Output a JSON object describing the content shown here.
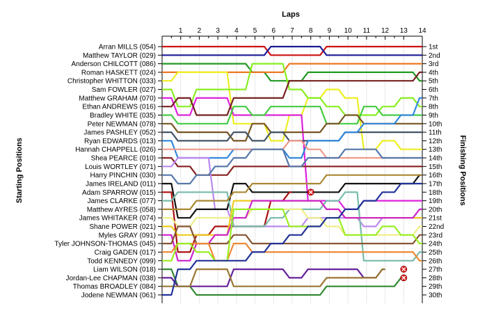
{
  "chart_data": {
    "type": "line",
    "title": "",
    "xlabel": "Laps",
    "ylabel_left": "Starting Positions",
    "ylabel_right": "Finishing Positions",
    "laps": [
      1,
      2,
      3,
      4,
      5,
      6,
      7,
      8,
      9,
      10,
      11,
      12,
      13,
      14
    ],
    "x_range": [
      0,
      14
    ],
    "y_range": [
      1,
      30
    ],
    "drivers": [
      "Arran MILLS (054)",
      "Matthew TAYLOR (029)",
      "Anderson CHILCOTT (086)",
      "Roman HASKETT (024)",
      "Christopher WHITTON (033)",
      "Sam FOWLER (027)",
      "Matthew GRAHAM (070)",
      "Ethan ANDREWS (016)",
      "Bradley WHITE (035)",
      "Peter NEWMAN (078)",
      "James PASHLEY (052)",
      "Ryan EDWARDS (013)",
      "Hannah CHAPPELL (026)",
      "Shea PEARCE (010)",
      "Louis WORTLEY (071)",
      "Harry PINCHIN (030)",
      "James IRELAND (011)",
      "Adam SPARROW (015)",
      "James CLARKE (077)",
      "Matthew AYRES (058)",
      "James WHITAKER (074)",
      "Shane POWER (021)",
      "Myles GRAY (091)",
      "Tyler JOHNSON-THOMAS (045)",
      "Craig GADEN (017)",
      "Todd KENNEDY (099)",
      "Liam WILSON (018)",
      "Jordan-Lee CHAPMAN (038)",
      "Thomas BROADLEY (084)",
      "Jodene NEWMAN (061)"
    ],
    "finishing_labels": [
      "1st",
      "2nd",
      "3rd",
      "4th",
      "5th",
      "6th",
      "7th",
      "8th",
      "9th",
      "10th",
      "11th",
      "12th",
      "13th",
      "14th",
      "15th",
      "16th",
      "17th",
      "18th",
      "19th",
      "20th",
      "21st",
      "22nd",
      "23rd",
      "24th",
      "25th",
      "26th",
      "27th",
      "28th",
      "29th",
      "30th"
    ],
    "series": [
      {
        "color": "#cc1111",
        "positions": [
          1,
          1,
          1,
          1,
          1,
          1,
          2,
          2,
          2,
          1,
          1,
          1,
          1,
          1,
          1
        ]
      },
      {
        "color": "#1a1a99",
        "positions": [
          2,
          2,
          2,
          2,
          2,
          2,
          1,
          1,
          1,
          2,
          2,
          2,
          2,
          2,
          2
        ]
      },
      {
        "color": "#229922",
        "positions": [
          3,
          3,
          3,
          3,
          3,
          4,
          5,
          5,
          4,
          4,
          4,
          4,
          4,
          4,
          5
        ]
      },
      {
        "color": "#ee7722",
        "positions": [
          4,
          4,
          4,
          4,
          4,
          4,
          4,
          3,
          3,
          3,
          3,
          3,
          3,
          3,
          3
        ]
      },
      {
        "color": "#eeee22",
        "positions": [
          5,
          4,
          4,
          4,
          10,
          10,
          12,
          9,
          7,
          6,
          7,
          13,
          12,
          13,
          13
        ]
      },
      {
        "color": "#88ee22",
        "positions": [
          6,
          8,
          6,
          6,
          6,
          3,
          3,
          6,
          7,
          8,
          9,
          9,
          8,
          7,
          8
        ]
      },
      {
        "color": "#dd22dd",
        "positions": [
          7,
          9,
          7,
          7,
          9,
          9,
          9,
          9,
          19,
          19,
          20,
          19,
          19,
          19,
          19
        ]
      },
      {
        "color": "#772222",
        "positions": [
          8,
          7,
          9,
          9,
          7,
          7,
          7,
          5,
          5,
          5,
          5,
          5,
          5,
          5,
          4
        ]
      },
      {
        "color": "#44cc44",
        "positions": [
          9,
          10,
          10,
          10,
          8,
          9,
          8,
          8,
          8,
          10,
          10,
          8,
          9,
          9,
          9
        ]
      },
      {
        "color": "#775522",
        "positions": [
          10,
          11,
          11,
          11,
          12,
          10,
          11,
          11,
          11,
          10,
          9,
          10,
          10,
          10,
          10
        ]
      },
      {
        "color": "#445566",
        "positions": [
          11,
          12,
          12,
          12,
          11,
          12,
          11,
          12,
          12,
          12,
          11,
          11,
          11,
          11,
          11
        ]
      },
      {
        "color": "#3388dd",
        "positions": [
          12,
          14,
          14,
          14,
          13,
          13,
          13,
          14,
          12,
          12,
          11,
          10,
          10,
          9,
          7
        ]
      },
      {
        "color": "#ee9988",
        "positions": [
          13,
          13,
          13,
          13,
          13,
          13,
          13,
          12,
          13,
          14,
          14,
          14,
          14,
          14,
          14
        ]
      },
      {
        "color": "#882222",
        "positions": [
          14,
          15,
          16,
          16,
          15,
          15,
          15,
          15,
          15,
          15,
          15,
          15,
          15,
          15,
          15
        ]
      },
      {
        "color": "#bb88ee",
        "positions": [
          15,
          14,
          14,
          20,
          22,
          22,
          22,
          22,
          21,
          21,
          21,
          22,
          21,
          21,
          21
        ]
      },
      {
        "color": "#5577aa",
        "positions": [
          16,
          17,
          16,
          15,
          14,
          13,
          13,
          15,
          14,
          14,
          13,
          13,
          14,
          14,
          14
        ]
      },
      {
        "color": "#111111",
        "positions": [
          17,
          21,
          20,
          20,
          17,
          18,
          18,
          18,
          18,
          18,
          17,
          17,
          17,
          17,
          16
        ]
      },
      {
        "color": "#aa1111",
        "positions": [
          18,
          25,
          23,
          22,
          22,
          22,
          19,
          18
        ]
      },
      {
        "color": "#77bbaa",
        "positions": [
          19,
          18,
          18,
          18,
          22,
          22,
          21,
          20,
          20,
          19,
          18,
          26,
          26,
          26,
          25
        ]
      },
      {
        "color": "#aa8833",
        "positions": [
          20,
          20,
          19,
          19,
          18,
          17,
          17,
          17,
          17,
          16,
          16,
          16,
          16,
          16,
          16
        ]
      },
      {
        "color": "#eeee88",
        "positions": [
          21,
          22,
          21,
          21,
          21,
          20,
          20,
          20,
          21,
          22,
          23,
          23,
          23,
          23,
          22
        ]
      },
      {
        "color": "#eecc22",
        "positions": [
          22,
          23,
          23,
          23,
          19,
          19,
          19,
          19,
          19,
          20,
          21,
          21,
          21,
          21,
          21
        ]
      },
      {
        "color": "#cc22cc",
        "positions": [
          23,
          26,
          24,
          23,
          21,
          19,
          19,
          19,
          19,
          20,
          21,
          21,
          21,
          21,
          20
        ]
      },
      {
        "color": "#885533",
        "positions": [
          24,
          22,
          24,
          24,
          23,
          24,
          24,
          24,
          24,
          24,
          24,
          24,
          24,
          24,
          23
        ]
      },
      {
        "color": "#ee8833",
        "positions": [
          25,
          24,
          24,
          26,
          24,
          25,
          25,
          25,
          25,
          25,
          25,
          25,
          25,
          25,
          26
        ]
      },
      {
        "color": "#99ee22",
        "positions": [
          26,
          24,
          25,
          26,
          20,
          20,
          20,
          22,
          22,
          21,
          23,
          23,
          22,
          23,
          24
        ]
      },
      {
        "color": "#338833",
        "positions": [
          27,
          29,
          30,
          30,
          30,
          30,
          30,
          30,
          30,
          29,
          29,
          29,
          29,
          28
        ]
      },
      {
        "color": "#662299",
        "positions": [
          28,
          29,
          29,
          29,
          27,
          27,
          27,
          28,
          27,
          27,
          27,
          28,
          27
        ]
      },
      {
        "color": "#997733",
        "positions": [
          29,
          29,
          27,
          27,
          29,
          29,
          29,
          29,
          29,
          28,
          28,
          28,
          27
        ]
      },
      {
        "color": "#223399",
        "positions": [
          30,
          27,
          26,
          26,
          26,
          25,
          24,
          23,
          22,
          21,
          20,
          19,
          18,
          17,
          17
        ]
      }
    ],
    "markers": [
      {
        "type": "retired",
        "lap": 8,
        "position": 18
      },
      {
        "type": "retired",
        "lap": 13,
        "position": 27
      },
      {
        "type": "retired",
        "lap": 13,
        "position": 28
      }
    ],
    "grid": "vertical"
  }
}
